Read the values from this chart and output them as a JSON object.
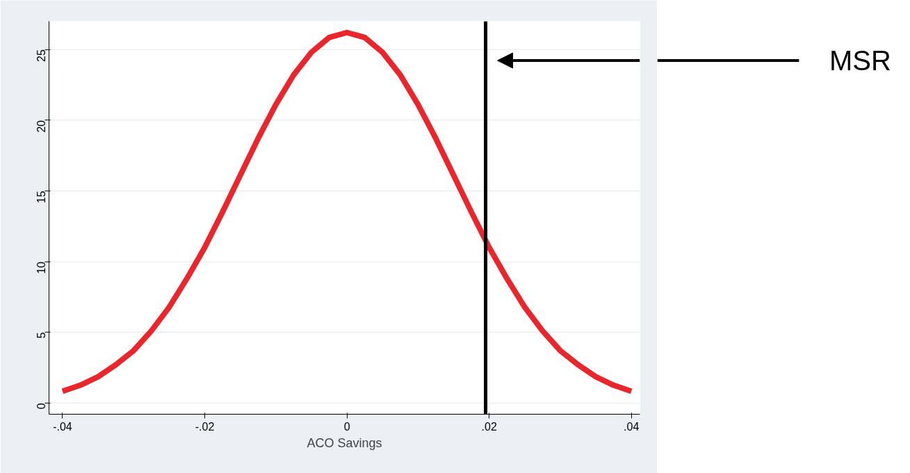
{
  "chart_data": {
    "type": "line",
    "xlabel": "ACO Savings",
    "x": [
      -0.04,
      -0.0375,
      -0.035,
      -0.0325,
      -0.03,
      -0.0275,
      -0.025,
      -0.0225,
      -0.02,
      -0.0175,
      -0.015,
      -0.0125,
      -0.01,
      -0.0075,
      -0.005,
      -0.0025,
      0,
      0.0025,
      0.005,
      0.0075,
      0.01,
      0.0125,
      0.015,
      0.0175,
      0.02,
      0.0225,
      0.025,
      0.0275,
      0.03,
      0.0325,
      0.035,
      0.0375,
      0.04
    ],
    "series": [
      {
        "color": "#e8262b",
        "values": [
          0.82,
          1.25,
          1.85,
          2.7,
          3.7,
          5.1,
          6.77,
          8.8,
          11.0,
          13.5,
          16.1,
          18.7,
          21.1,
          23.2,
          24.8,
          25.85,
          26.2,
          25.85,
          24.8,
          23.2,
          21.1,
          18.7,
          16.1,
          13.5,
          11.0,
          8.8,
          6.77,
          5.1,
          3.7,
          2.7,
          1.85,
          1.25,
          0.82
        ]
      }
    ],
    "xlim": [
      -0.0419,
      0.0412
    ],
    "ylim": [
      -0.8,
      27.0
    ],
    "xticks": [
      {
        "value": -0.04,
        "label": "-.04"
      },
      {
        "value": -0.02,
        "label": "-.02"
      },
      0,
      {
        "value": 0.02,
        "label": ".02"
      },
      {
        "value": 0.04,
        "label": ".04"
      }
    ],
    "yticks": [
      0,
      5,
      10,
      15,
      20,
      25
    ],
    "grid": "y",
    "marker": "none",
    "line_style": "solid",
    "ref_lines": [
      {
        "axis": "x",
        "value": 0.0195,
        "label": "MSR",
        "color": "#000000"
      }
    ]
  }
}
